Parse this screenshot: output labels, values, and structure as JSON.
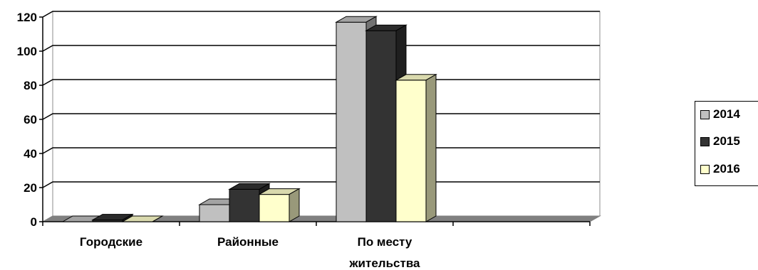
{
  "chart_data": {
    "type": "bar",
    "style": "3d-clustered-column",
    "categories": [
      "Городские",
      "Районные",
      "По месту жительства",
      ""
    ],
    "series": [
      {
        "name": "2014",
        "color": "#c0c0c0",
        "values": [
          0,
          10,
          117,
          null
        ]
      },
      {
        "name": "2015",
        "color": "#333333",
        "values": [
          1,
          19,
          112,
          null
        ]
      },
      {
        "name": "2016",
        "color": "#ffffcc",
        "values": [
          0,
          16,
          83,
          null
        ]
      }
    ],
    "title": "",
    "xlabel": "",
    "ylabel": "",
    "ylim": [
      0,
      120
    ],
    "yticks": [
      "0",
      "20",
      "40",
      "60",
      "80",
      "100",
      "120"
    ],
    "grid": true,
    "legend_position": "right"
  }
}
